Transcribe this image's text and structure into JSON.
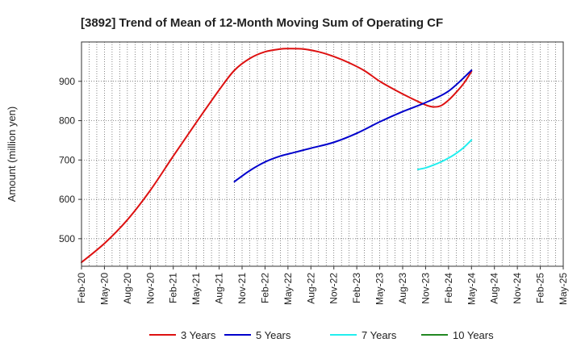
{
  "chart_data": {
    "type": "line",
    "title": "[3892]  Trend of Mean of 12-Month Moving Sum of Operating CF",
    "xlabel": "",
    "ylabel": "Amount (million yen)",
    "ylim": [
      430,
      1000
    ],
    "yticks": [
      500,
      600,
      700,
      800,
      900
    ],
    "x_range": [
      0,
      63
    ],
    "categories": [
      "Feb-20",
      "May-20",
      "Aug-20",
      "Nov-20",
      "Feb-21",
      "May-21",
      "Aug-21",
      "Nov-21",
      "Feb-22",
      "May-22",
      "Aug-22",
      "Nov-22",
      "Feb-23",
      "May-23",
      "Aug-23",
      "Nov-23",
      "Feb-24",
      "May-24",
      "Aug-24",
      "Nov-24",
      "Feb-25",
      "May-25"
    ],
    "category_month_index": [
      0,
      3,
      6,
      9,
      12,
      15,
      18,
      21,
      24,
      27,
      30,
      33,
      36,
      39,
      42,
      45,
      48,
      51,
      54,
      57,
      60,
      63
    ],
    "grid": true,
    "legend_position": "bottom",
    "series": [
      {
        "name": "3 Years",
        "color": "#dd1111",
        "points": [
          [
            0,
            440
          ],
          [
            3,
            488
          ],
          [
            6,
            548
          ],
          [
            9,
            623
          ],
          [
            12,
            710
          ],
          [
            15,
            795
          ],
          [
            18,
            878
          ],
          [
            20,
            928
          ],
          [
            22,
            958
          ],
          [
            24,
            975
          ],
          [
            26,
            982
          ],
          [
            27,
            983
          ],
          [
            29,
            982
          ],
          [
            31,
            975
          ],
          [
            33,
            963
          ],
          [
            35,
            947
          ],
          [
            37,
            927
          ],
          [
            39,
            900
          ],
          [
            41,
            878
          ],
          [
            43,
            858
          ],
          [
            45,
            840
          ],
          [
            46,
            835
          ],
          [
            47,
            838
          ],
          [
            48,
            852
          ],
          [
            49,
            872
          ],
          [
            50,
            895
          ],
          [
            51,
            925
          ]
        ]
      },
      {
        "name": "5 Years",
        "color": "#0000cc",
        "points": [
          [
            20,
            645
          ],
          [
            22,
            673
          ],
          [
            24,
            695
          ],
          [
            26,
            710
          ],
          [
            28,
            720
          ],
          [
            30,
            730
          ],
          [
            33,
            745
          ],
          [
            36,
            768
          ],
          [
            39,
            797
          ],
          [
            42,
            823
          ],
          [
            45,
            846
          ],
          [
            48,
            875
          ],
          [
            51,
            928
          ]
        ]
      },
      {
        "name": "7 Years",
        "color": "#22eeee",
        "points": [
          [
            44,
            676
          ],
          [
            45,
            680
          ],
          [
            46,
            687
          ],
          [
            47,
            695
          ],
          [
            48,
            705
          ],
          [
            49,
            717
          ],
          [
            50,
            732
          ],
          [
            51,
            751
          ]
        ]
      },
      {
        "name": "10 Years",
        "color": "#228822",
        "points": []
      }
    ]
  }
}
